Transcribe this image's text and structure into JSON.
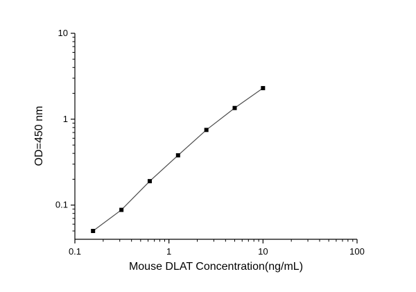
{
  "page": {
    "background_color": "#ffffff"
  },
  "chart_data": {
    "type": "line",
    "title": "",
    "xlabel": "Mouse DLAT Concentration(ng/mL)",
    "ylabel": "OD=450 nm",
    "xscale": "log",
    "yscale": "log",
    "xlim": [
      0.1,
      100
    ],
    "ylim": [
      0.04,
      10
    ],
    "x": [
      0.156,
      0.3125,
      0.625,
      1.25,
      2.5,
      5,
      10
    ],
    "y": [
      0.05,
      0.088,
      0.19,
      0.38,
      0.75,
      1.35,
      2.3
    ],
    "x_major_ticks": [
      0.1,
      1,
      10,
      100
    ],
    "y_major_ticks": [
      0.1,
      1,
      10
    ],
    "x_major_tick_labels": [
      "0.1",
      "1",
      "10",
      "100"
    ],
    "y_major_tick_labels": [
      "0.1",
      "1",
      "10"
    ],
    "grid": false,
    "legend_position": "none",
    "marker": "square",
    "marker_color": "#000000",
    "line_color": "#4a4a4a",
    "axis_color": "#000000"
  }
}
